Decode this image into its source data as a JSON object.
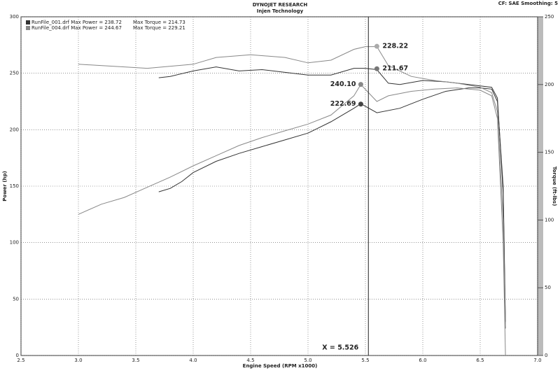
{
  "chart_data": {
    "type": "line",
    "title": "DYNOJET RESEARCH",
    "subtitle": "Injen Technology",
    "settings_text": "CF: SAE  Smoothing: 5",
    "xlabel": "Engine Speed (RPM x1000)",
    "ylabel": "Power (hp)",
    "y2label": "Torque (ft-lbs)",
    "xlim": [
      2.5,
      7.0
    ],
    "xticks": [
      2.5,
      {
        "value": 3,
        "label": "3.0"
      },
      3.5,
      {
        "value": 4,
        "label": "4.0"
      },
      4.5,
      {
        "value": 5,
        "label": "5.0"
      },
      5.5,
      {
        "value": 6,
        "label": "6.0"
      },
      6.5,
      {
        "value": 7,
        "label": "7.0"
      }
    ],
    "ylim": [
      0,
      300
    ],
    "yticks": [
      0,
      50,
      100,
      150,
      200,
      250,
      300
    ],
    "y2lim": [
      0,
      250
    ],
    "y2ticks": [
      0,
      50,
      100,
      150,
      200,
      250
    ],
    "grid": true,
    "legend": [
      {
        "text": "RunFile_001.drf Max Power = 238.72",
        "torque": "Max Torque = 214.73",
        "color": "#333333"
      },
      {
        "text": "RunFile_004.drf Max Power = 244.67",
        "torque": "Max Torque = 229.21",
        "color": "#888888"
      }
    ],
    "series": [
      {
        "color": "#333333",
        "axis": "y",
        "x": [
          3.7,
          3.8,
          3.9,
          4.0,
          4.2,
          4.4,
          4.6,
          4.8,
          5.0,
          5.2,
          5.4,
          5.46,
          5.6,
          5.8,
          6.0,
          6.2,
          6.4,
          6.5,
          6.6,
          6.65,
          6.7,
          6.72
        ],
        "values": [
          145,
          148,
          154,
          162,
          172,
          179,
          185,
          191,
          197,
          207,
          219,
          223,
          215,
          219,
          227,
          234,
          237,
          237,
          236,
          225,
          150,
          30
        ]
      },
      {
        "color": "#888888",
        "axis": "y",
        "x": [
          3.0,
          3.2,
          3.4,
          3.6,
          3.8,
          4.0,
          4.2,
          4.4,
          4.6,
          4.8,
          5.0,
          5.2,
          5.4,
          5.46,
          5.6,
          5.7,
          5.9,
          6.1,
          6.3,
          6.5,
          6.6,
          6.65,
          6.7,
          6.72
        ],
        "values": [
          125,
          134,
          140,
          149,
          158,
          168,
          177,
          186,
          193,
          199,
          205,
          213,
          230,
          240,
          225,
          230,
          234,
          236,
          237,
          235,
          230,
          210,
          100,
          0
        ]
      },
      {
        "color": "#333333",
        "axis": "y2",
        "x": [
          3.7,
          3.8,
          4.0,
          4.2,
          4.4,
          4.6,
          4.8,
          5.0,
          5.2,
          5.4,
          5.5,
          5.6,
          5.7,
          5.8,
          6.0,
          6.2,
          6.4,
          6.6,
          6.65,
          6.7,
          6.72
        ],
        "values": [
          205,
          206,
          210,
          213,
          210,
          211,
          209,
          207,
          207,
          212,
          212,
          211,
          201,
          200,
          203,
          202,
          200,
          198,
          190,
          120,
          20
        ]
      },
      {
        "color": "#888888",
        "axis": "y2",
        "x": [
          3.0,
          3.4,
          3.6,
          4.0,
          4.2,
          4.5,
          4.8,
          5.0,
          5.2,
          5.4,
          5.5,
          5.6,
          5.7,
          5.9,
          6.1,
          6.3,
          6.5,
          6.6,
          6.65,
          6.7,
          6.72
        ],
        "values": [
          215,
          213,
          212,
          215,
          220,
          222,
          220,
          216,
          218,
          226,
          228,
          228,
          214,
          206,
          203,
          201,
          198,
          194,
          180,
          100,
          20
        ]
      }
    ],
    "annotations": [
      {
        "label": "228.22",
        "x": 5.6,
        "y": 228.22,
        "axis": "y2",
        "color": "#aaaaaa",
        "side": "right"
      },
      {
        "label": "211.67",
        "x": 5.6,
        "y": 211.67,
        "axis": "y2",
        "color": "#777777",
        "side": "right"
      },
      {
        "label": "240.10",
        "x": 5.46,
        "y": 240.1,
        "axis": "y",
        "color": "#888888",
        "side": "left"
      },
      {
        "label": "222.69",
        "x": 5.46,
        "y": 222.69,
        "axis": "y",
        "color": "#444444",
        "side": "left"
      }
    ],
    "cursor": {
      "label": "X = 5.526",
      "x": 5.526
    }
  }
}
